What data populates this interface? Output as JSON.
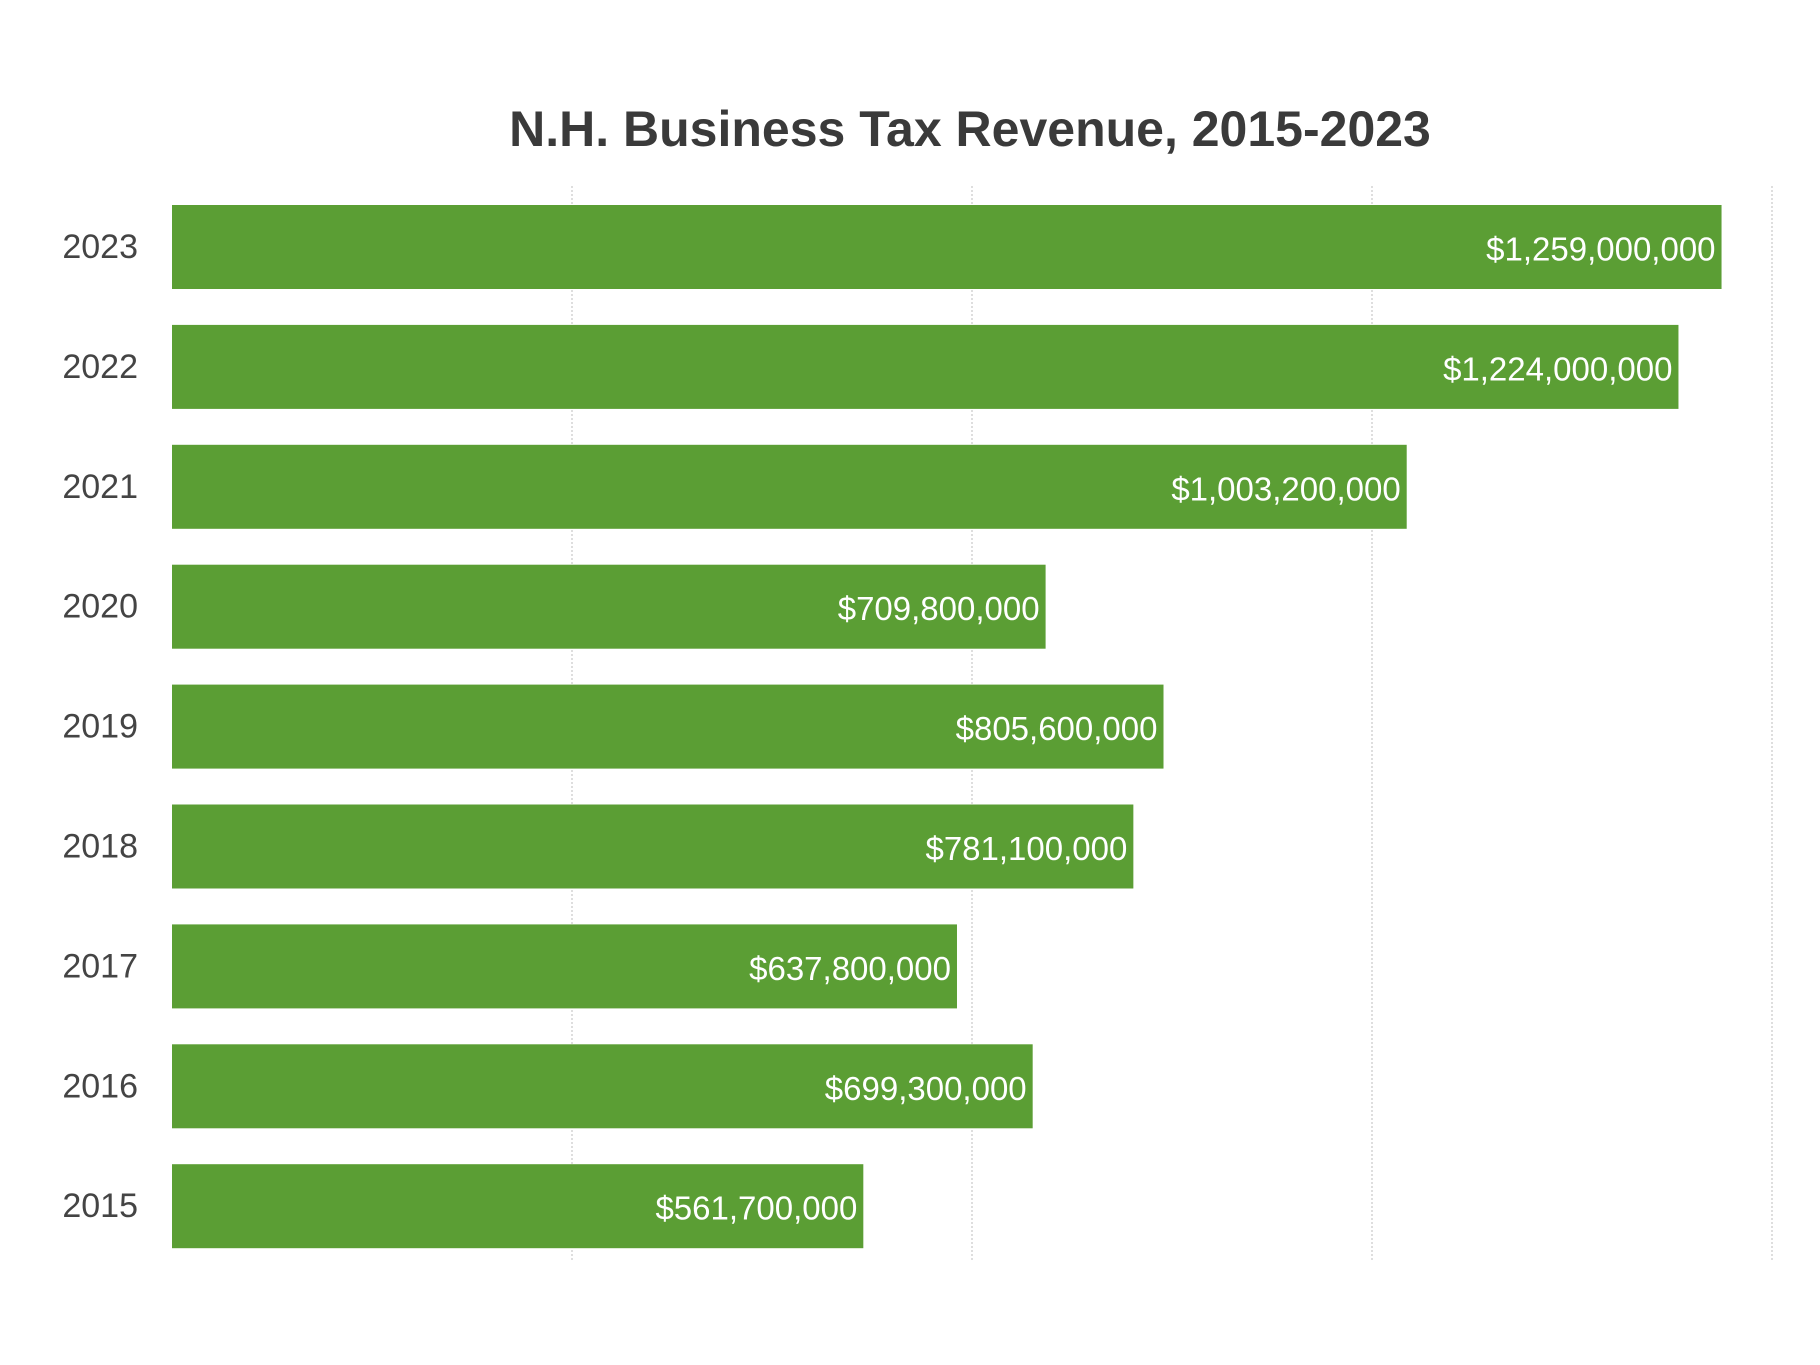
{
  "chart_data": {
    "type": "bar",
    "orientation": "horizontal",
    "title": "N.H. Business Tax Revenue, 2015-2023",
    "xlabel": "",
    "ylabel": "",
    "categories": [
      "2023",
      "2022",
      "2021",
      "2020",
      "2019",
      "2018",
      "2017",
      "2016",
      "2015"
    ],
    "values": [
      1259000000,
      1224000000,
      1003200000,
      709800000,
      805600000,
      781100000,
      637800000,
      699300000,
      561700000
    ],
    "value_labels": [
      "$1,259,000,000",
      "$1,224,000,000",
      "$1,003,200,000",
      "$709,800,000",
      "$805,600,000",
      "$781,100,000",
      "$637,800,000",
      "$699,300,000",
      "$561,700,000"
    ],
    "xlim": [
      0,
      1300000000
    ],
    "gridlines_x": [
      325000000,
      650000000,
      975000000,
      1300000000
    ],
    "grid": true,
    "legend": "none",
    "bar_color": "#5b9e34"
  }
}
